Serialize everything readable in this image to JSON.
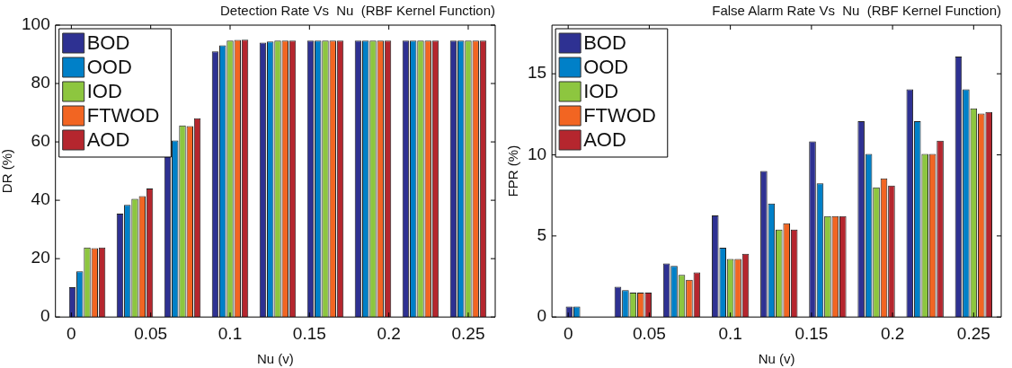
{
  "chart_data": [
    {
      "type": "bar",
      "title": "Detection Rate Vs  Nu  (RBF Kernel Function)",
      "xlabel": "Nu (v)",
      "ylabel": "DR (%)",
      "x": [
        0.01,
        0.04,
        0.07,
        0.1,
        0.13,
        0.16,
        0.19,
        0.22,
        0.25
      ],
      "xlim": [
        -0.01,
        0.267
      ],
      "xticks": [
        0,
        0.05,
        0.1,
        0.15,
        0.2,
        0.25
      ],
      "ylim": [
        0,
        100
      ],
      "yticks": [
        0,
        20,
        40,
        60,
        80,
        100
      ],
      "grid": false,
      "legend": "top left",
      "series": [
        {
          "name": "BOD",
          "color": "#2e3192",
          "values": [
            10.2,
            35.4,
            55.3,
            91.0,
            94.0,
            94.7,
            94.7,
            94.7,
            94.7
          ]
        },
        {
          "name": "OOD",
          "color": "#0080c8",
          "values": [
            15.7,
            38.4,
            60.5,
            93.1,
            94.4,
            94.7,
            94.7,
            94.7,
            94.7
          ]
        },
        {
          "name": "IOD",
          "color": "#8dc63f",
          "values": [
            23.8,
            40.5,
            65.6,
            94.7,
            94.7,
            94.7,
            94.7,
            94.7,
            94.7
          ]
        },
        {
          "name": "FTWOD",
          "color": "#f26522",
          "values": [
            23.6,
            41.4,
            65.4,
            94.9,
            94.7,
            94.7,
            94.7,
            94.7,
            94.7
          ]
        },
        {
          "name": "AOD",
          "color": "#b5262e",
          "values": [
            23.8,
            44.0,
            68.1,
            95.0,
            94.7,
            94.7,
            94.7,
            94.7,
            94.7
          ]
        }
      ]
    },
    {
      "type": "bar",
      "title": "False Alarm Rate Vs  Nu  (RBF Kernel Function)",
      "xlabel": "Nu (v)",
      "ylabel": "FPR (%)",
      "x": [
        0.01,
        0.04,
        0.07,
        0.1,
        0.13,
        0.16,
        0.19,
        0.22,
        0.25
      ],
      "xlim": [
        -0.01,
        0.267
      ],
      "xticks": [
        0,
        0.05,
        0.1,
        0.15,
        0.2,
        0.25
      ],
      "ylim": [
        0,
        18
      ],
      "yticks": [
        0,
        5,
        10,
        15
      ],
      "grid": false,
      "legend": "top left",
      "series": [
        {
          "name": "BOD",
          "color": "#2e3192",
          "values": [
            0.65,
            1.86,
            3.3,
            6.26,
            9.0,
            10.83,
            12.08,
            14.04,
            16.06
          ]
        },
        {
          "name": "OOD",
          "color": "#0080c8",
          "values": [
            0.65,
            1.66,
            3.15,
            4.28,
            7.0,
            8.24,
            10.06,
            12.08,
            14.04
          ]
        },
        {
          "name": "IOD",
          "color": "#8dc63f",
          "values": [
            0,
            1.5,
            2.6,
            3.58,
            5.4,
            6.22,
            8.0,
            10.06,
            12.87
          ]
        },
        {
          "name": "FTWOD",
          "color": "#f26522",
          "values": [
            0,
            1.5,
            2.3,
            3.58,
            5.78,
            6.22,
            8.55,
            10.06,
            12.55
          ]
        },
        {
          "name": "AOD",
          "color": "#b5262e",
          "values": [
            0,
            1.5,
            2.75,
            3.9,
            5.4,
            6.22,
            8.1,
            10.87,
            12.65
          ]
        }
      ]
    }
  ]
}
